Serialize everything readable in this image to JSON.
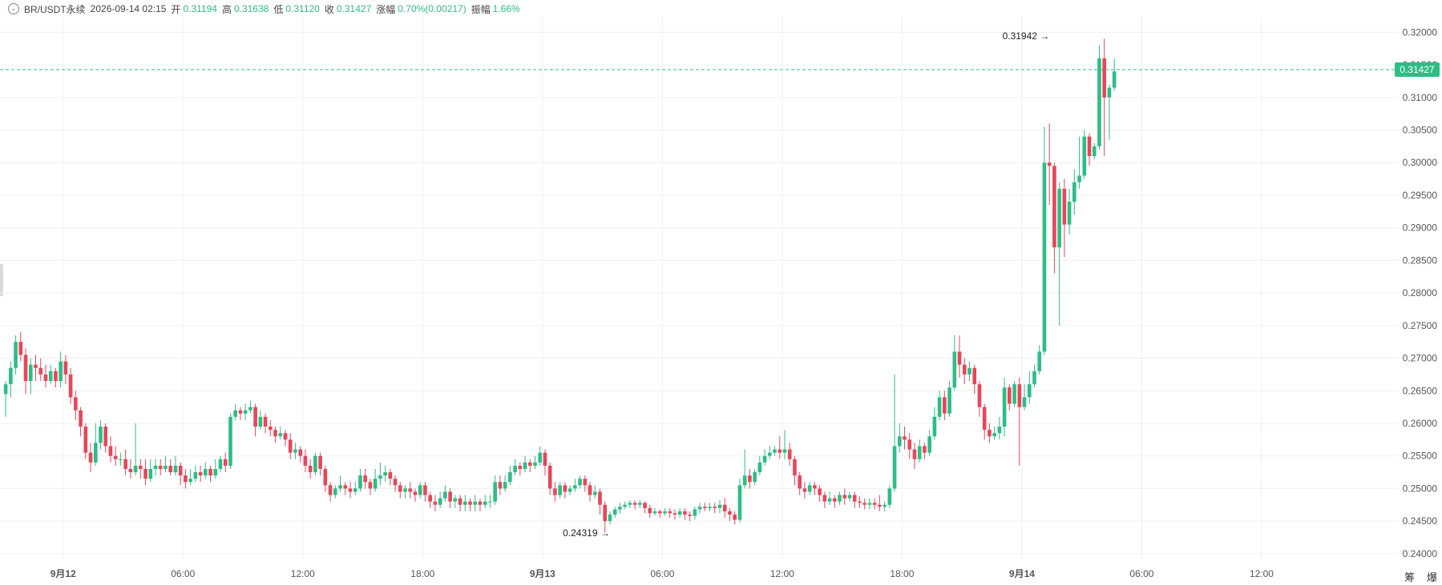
{
  "header": {
    "symbol": "BR/USDT永续",
    "time": "2026-09-14 02:15",
    "open_label": "开",
    "open": "0.31194",
    "high_label": "高",
    "high": "0.31638",
    "low_label": "低",
    "low": "0.31120",
    "close_label": "收",
    "close": "0.31427",
    "change_label": "涨幅",
    "change": "0.70%(0.00217)",
    "amplitude_label": "振幅",
    "amplitude": "1.66%"
  },
  "icons": {
    "collapse": "chevron-down-icon"
  },
  "colors": {
    "up": "#2ebd85",
    "down": "#e5475b",
    "grid": "#f0f0f0",
    "axis_text": "#555555"
  },
  "bottom_right": {
    "item1": "筹",
    "item2": "爆"
  },
  "chart_data": {
    "type": "candlestick",
    "ylim": [
      0.239,
      0.3225
    ],
    "y_ticks": [
      "0.32000",
      "0.31500",
      "0.31000",
      "0.30500",
      "0.30000",
      "0.29500",
      "0.29000",
      "0.28500",
      "0.28000",
      "0.27500",
      "0.27000",
      "0.26500",
      "0.26000",
      "0.25500",
      "0.25000",
      "0.24500",
      "0.24000"
    ],
    "x_ticks": [
      {
        "label": "9月12",
        "bar": 12,
        "bold": true
      },
      {
        "label": "06:00",
        "bar": 36
      },
      {
        "label": "12:00",
        "bar": 60
      },
      {
        "label": "18:00",
        "bar": 84
      },
      {
        "label": "9月13",
        "bar": 108,
        "bold": true
      },
      {
        "label": "06:00",
        "bar": 132
      },
      {
        "label": "12:00",
        "bar": 156
      },
      {
        "label": "18:00",
        "bar": 180
      },
      {
        "label": "9月14",
        "bar": 204,
        "bold": true
      },
      {
        "label": "06:00",
        "bar": 228
      },
      {
        "label": "12:00",
        "bar": 252
      }
    ],
    "last_price": 0.31427,
    "last_price_label": "0.31427",
    "max_marker": {
      "label": "0.31942",
      "bar": 210,
      "value": 0.31942
    },
    "min_marker": {
      "label": "0.24319",
      "bar": 121,
      "value": 0.24319
    },
    "candles": [
      [
        0.2645,
        0.266,
        0.261,
        0.2665
      ],
      [
        0.266,
        0.2685,
        0.264,
        0.2695
      ],
      [
        0.2685,
        0.2725,
        0.2675,
        0.2735
      ],
      [
        0.2725,
        0.2705,
        0.2695,
        0.274
      ],
      [
        0.2705,
        0.2665,
        0.2645,
        0.2715
      ],
      [
        0.2665,
        0.269,
        0.2645,
        0.27
      ],
      [
        0.269,
        0.2685,
        0.2665,
        0.2705
      ],
      [
        0.2685,
        0.2675,
        0.2665,
        0.27
      ],
      [
        0.2675,
        0.2665,
        0.2655,
        0.269
      ],
      [
        0.2665,
        0.268,
        0.266,
        0.269
      ],
      [
        0.268,
        0.2665,
        0.2655,
        0.2685
      ],
      [
        0.2665,
        0.2695,
        0.2655,
        0.271
      ],
      [
        0.2695,
        0.2675,
        0.266,
        0.2705
      ],
      [
        0.2675,
        0.264,
        0.263,
        0.2685
      ],
      [
        0.264,
        0.262,
        0.2605,
        0.265
      ],
      [
        0.262,
        0.2595,
        0.258,
        0.2625
      ],
      [
        0.2595,
        0.2555,
        0.2545,
        0.26
      ],
      [
        0.2555,
        0.254,
        0.2525,
        0.257
      ],
      [
        0.254,
        0.257,
        0.2535,
        0.26
      ],
      [
        0.257,
        0.2595,
        0.256,
        0.2605
      ],
      [
        0.2595,
        0.2565,
        0.2555,
        0.26
      ],
      [
        0.2565,
        0.255,
        0.254,
        0.258
      ],
      [
        0.255,
        0.2545,
        0.2535,
        0.2565
      ],
      [
        0.2545,
        0.2545,
        0.2535,
        0.2555
      ],
      [
        0.2545,
        0.253,
        0.252,
        0.256
      ],
      [
        0.253,
        0.2525,
        0.2515,
        0.2545
      ],
      [
        0.2525,
        0.2535,
        0.252,
        0.26
      ],
      [
        0.2535,
        0.253,
        0.2515,
        0.2545
      ],
      [
        0.253,
        0.2515,
        0.2505,
        0.2545
      ],
      [
        0.2515,
        0.253,
        0.251,
        0.2545
      ],
      [
        0.253,
        0.2535,
        0.252,
        0.2545
      ],
      [
        0.2535,
        0.253,
        0.252,
        0.2545
      ],
      [
        0.253,
        0.2535,
        0.2525,
        0.255
      ],
      [
        0.2535,
        0.2525,
        0.252,
        0.2545
      ],
      [
        0.2525,
        0.2535,
        0.252,
        0.255
      ],
      [
        0.2535,
        0.252,
        0.2505,
        0.254
      ],
      [
        0.252,
        0.251,
        0.25,
        0.253
      ],
      [
        0.251,
        0.2515,
        0.2505,
        0.253
      ],
      [
        0.2515,
        0.2525,
        0.251,
        0.2535
      ],
      [
        0.2525,
        0.252,
        0.251,
        0.2535
      ],
      [
        0.252,
        0.253,
        0.2515,
        0.254
      ],
      [
        0.253,
        0.252,
        0.251,
        0.2535
      ],
      [
        0.252,
        0.253,
        0.2515,
        0.2545
      ],
      [
        0.253,
        0.2545,
        0.2525,
        0.255
      ],
      [
        0.2545,
        0.2535,
        0.2525,
        0.2555
      ],
      [
        0.2535,
        0.261,
        0.253,
        0.2615
      ],
      [
        0.261,
        0.262,
        0.2605,
        0.263
      ],
      [
        0.262,
        0.2615,
        0.2605,
        0.2625
      ],
      [
        0.2615,
        0.262,
        0.2605,
        0.263
      ],
      [
        0.262,
        0.2625,
        0.2615,
        0.2635
      ],
      [
        0.2625,
        0.2595,
        0.258,
        0.263
      ],
      [
        0.2595,
        0.261,
        0.259,
        0.262
      ],
      [
        0.261,
        0.2595,
        0.2585,
        0.2615
      ],
      [
        0.2595,
        0.259,
        0.258,
        0.2605
      ],
      [
        0.259,
        0.258,
        0.257,
        0.2595
      ],
      [
        0.258,
        0.2585,
        0.2575,
        0.2595
      ],
      [
        0.2585,
        0.2575,
        0.2565,
        0.259
      ],
      [
        0.2575,
        0.2555,
        0.2545,
        0.2585
      ],
      [
        0.2555,
        0.256,
        0.2545,
        0.257
      ],
      [
        0.256,
        0.255,
        0.254,
        0.2565
      ],
      [
        0.255,
        0.2535,
        0.2525,
        0.256
      ],
      [
        0.2535,
        0.2525,
        0.2515,
        0.2545
      ],
      [
        0.2525,
        0.255,
        0.252,
        0.2555
      ],
      [
        0.255,
        0.253,
        0.252,
        0.2555
      ],
      [
        0.253,
        0.2505,
        0.2495,
        0.2535
      ],
      [
        0.2505,
        0.249,
        0.248,
        0.251
      ],
      [
        0.249,
        0.25,
        0.2485,
        0.2505
      ],
      [
        0.25,
        0.2505,
        0.2495,
        0.252
      ],
      [
        0.2505,
        0.25,
        0.249,
        0.251
      ],
      [
        0.25,
        0.2495,
        0.2485,
        0.251
      ],
      [
        0.2495,
        0.25,
        0.249,
        0.251
      ],
      [
        0.25,
        0.252,
        0.2495,
        0.253
      ],
      [
        0.252,
        0.251,
        0.25,
        0.253
      ],
      [
        0.251,
        0.25,
        0.249,
        0.2515
      ],
      [
        0.25,
        0.2515,
        0.2495,
        0.253
      ],
      [
        0.2515,
        0.252,
        0.2505,
        0.254
      ],
      [
        0.252,
        0.2525,
        0.251,
        0.2535
      ],
      [
        0.2525,
        0.2515,
        0.2505,
        0.253
      ],
      [
        0.2515,
        0.2505,
        0.2495,
        0.252
      ],
      [
        0.2505,
        0.2495,
        0.2485,
        0.251
      ],
      [
        0.2495,
        0.25,
        0.2485,
        0.2505
      ],
      [
        0.25,
        0.2495,
        0.2485,
        0.251
      ],
      [
        0.2495,
        0.249,
        0.248,
        0.25
      ],
      [
        0.249,
        0.2505,
        0.2485,
        0.251
      ],
      [
        0.2505,
        0.249,
        0.248,
        0.251
      ],
      [
        0.249,
        0.248,
        0.247,
        0.2495
      ],
      [
        0.248,
        0.2475,
        0.2465,
        0.249
      ],
      [
        0.2475,
        0.2485,
        0.247,
        0.2495
      ],
      [
        0.2485,
        0.2495,
        0.248,
        0.2505
      ],
      [
        0.2495,
        0.248,
        0.247,
        0.25
      ],
      [
        0.248,
        0.2485,
        0.247,
        0.249
      ],
      [
        0.2485,
        0.2475,
        0.2465,
        0.249
      ],
      [
        0.2475,
        0.248,
        0.2465,
        0.249
      ],
      [
        0.248,
        0.2475,
        0.2465,
        0.2485
      ],
      [
        0.2475,
        0.248,
        0.2465,
        0.249
      ],
      [
        0.248,
        0.2475,
        0.2465,
        0.2485
      ],
      [
        0.2475,
        0.248,
        0.247,
        0.249
      ],
      [
        0.248,
        0.248,
        0.247,
        0.249
      ],
      [
        0.248,
        0.251,
        0.2475,
        0.252
      ],
      [
        0.251,
        0.25,
        0.249,
        0.252
      ],
      [
        0.25,
        0.251,
        0.2495,
        0.252
      ],
      [
        0.251,
        0.2525,
        0.2505,
        0.2535
      ],
      [
        0.2525,
        0.2535,
        0.252,
        0.2545
      ],
      [
        0.2535,
        0.253,
        0.252,
        0.254
      ],
      [
        0.253,
        0.254,
        0.2525,
        0.255
      ],
      [
        0.254,
        0.2535,
        0.2525,
        0.2545
      ],
      [
        0.2535,
        0.254,
        0.253,
        0.255
      ],
      [
        0.254,
        0.2555,
        0.2535,
        0.2565
      ],
      [
        0.2555,
        0.2535,
        0.252,
        0.256
      ],
      [
        0.2535,
        0.25,
        0.249,
        0.254
      ],
      [
        0.25,
        0.249,
        0.248,
        0.251
      ],
      [
        0.249,
        0.2505,
        0.2485,
        0.251
      ],
      [
        0.2505,
        0.2495,
        0.2485,
        0.251
      ],
      [
        0.2495,
        0.25,
        0.249,
        0.2505
      ],
      [
        0.25,
        0.2505,
        0.2495,
        0.2515
      ],
      [
        0.2505,
        0.2515,
        0.25,
        0.252
      ],
      [
        0.2515,
        0.2505,
        0.2495,
        0.252
      ],
      [
        0.2505,
        0.249,
        0.248,
        0.251
      ],
      [
        0.249,
        0.2495,
        0.2485,
        0.2505
      ],
      [
        0.2495,
        0.2475,
        0.246,
        0.25
      ],
      [
        0.2475,
        0.245,
        0.2432,
        0.248
      ],
      [
        0.245,
        0.246,
        0.2445,
        0.2465
      ],
      [
        0.246,
        0.2468,
        0.2455,
        0.2472
      ],
      [
        0.2468,
        0.2472,
        0.2462,
        0.2478
      ],
      [
        0.2472,
        0.2475,
        0.2468,
        0.248
      ],
      [
        0.2475,
        0.2478,
        0.247,
        0.2482
      ],
      [
        0.2478,
        0.2475,
        0.2468,
        0.2482
      ],
      [
        0.2475,
        0.2478,
        0.247,
        0.2482
      ],
      [
        0.2478,
        0.247,
        0.2462,
        0.248
      ],
      [
        0.247,
        0.2462,
        0.2455,
        0.2475
      ],
      [
        0.2462,
        0.2465,
        0.2458,
        0.247
      ],
      [
        0.2465,
        0.2462,
        0.2455,
        0.2468
      ],
      [
        0.2462,
        0.2465,
        0.2458,
        0.247
      ],
      [
        0.2465,
        0.2462,
        0.2455,
        0.247
      ],
      [
        0.2462,
        0.246,
        0.2452,
        0.2468
      ],
      [
        0.246,
        0.2465,
        0.2455,
        0.247
      ],
      [
        0.2465,
        0.246,
        0.2452,
        0.247
      ],
      [
        0.246,
        0.2458,
        0.245,
        0.2465
      ],
      [
        0.2458,
        0.2468,
        0.2452,
        0.2472
      ],
      [
        0.2468,
        0.2472,
        0.2462,
        0.2478
      ],
      [
        0.2472,
        0.247,
        0.2465,
        0.2478
      ],
      [
        0.247,
        0.2472,
        0.2465,
        0.2478
      ],
      [
        0.2472,
        0.247,
        0.2462,
        0.2478
      ],
      [
        0.247,
        0.2475,
        0.2462,
        0.2482
      ],
      [
        0.2475,
        0.2465,
        0.2455,
        0.2485
      ],
      [
        0.2465,
        0.246,
        0.245,
        0.247
      ],
      [
        0.246,
        0.2452,
        0.2445,
        0.2465
      ],
      [
        0.2452,
        0.2505,
        0.2448,
        0.2515
      ],
      [
        0.2505,
        0.252,
        0.25,
        0.256
      ],
      [
        0.252,
        0.251,
        0.25,
        0.253
      ],
      [
        0.251,
        0.2525,
        0.2505,
        0.253
      ],
      [
        0.2525,
        0.254,
        0.252,
        0.255
      ],
      [
        0.254,
        0.255,
        0.2535,
        0.256
      ],
      [
        0.255,
        0.2555,
        0.2545,
        0.2565
      ],
      [
        0.2555,
        0.256,
        0.255,
        0.2565
      ],
      [
        0.256,
        0.2555,
        0.2545,
        0.258
      ],
      [
        0.2555,
        0.256,
        0.2545,
        0.259
      ],
      [
        0.256,
        0.2545,
        0.2535,
        0.257
      ],
      [
        0.2545,
        0.252,
        0.2505,
        0.255
      ],
      [
        0.252,
        0.25,
        0.249,
        0.2525
      ],
      [
        0.25,
        0.2495,
        0.2485,
        0.251
      ],
      [
        0.2495,
        0.2505,
        0.249,
        0.251
      ],
      [
        0.2505,
        0.25,
        0.249,
        0.251
      ],
      [
        0.25,
        0.249,
        0.248,
        0.2505
      ],
      [
        0.249,
        0.248,
        0.247,
        0.2495
      ],
      [
        0.248,
        0.2485,
        0.2475,
        0.2495
      ],
      [
        0.2485,
        0.248,
        0.247,
        0.249
      ],
      [
        0.248,
        0.249,
        0.2475,
        0.2495
      ],
      [
        0.249,
        0.2485,
        0.2475,
        0.25
      ],
      [
        0.2485,
        0.249,
        0.248,
        0.2495
      ],
      [
        0.249,
        0.248,
        0.247,
        0.2495
      ],
      [
        0.248,
        0.2478,
        0.247,
        0.2488
      ],
      [
        0.2478,
        0.2475,
        0.2468,
        0.2485
      ],
      [
        0.2475,
        0.2478,
        0.2468,
        0.2485
      ],
      [
        0.2478,
        0.2475,
        0.2468,
        0.2485
      ],
      [
        0.2475,
        0.2472,
        0.2465,
        0.249
      ],
      [
        0.2472,
        0.2475,
        0.2465,
        0.248
      ],
      [
        0.2475,
        0.25,
        0.247,
        0.2505
      ],
      [
        0.25,
        0.2565,
        0.2495,
        0.2675
      ],
      [
        0.2565,
        0.258,
        0.2555,
        0.26
      ],
      [
        0.258,
        0.2575,
        0.256,
        0.2595
      ],
      [
        0.2575,
        0.256,
        0.2545,
        0.2585
      ],
      [
        0.256,
        0.2545,
        0.253,
        0.257
      ],
      [
        0.2545,
        0.2565,
        0.254,
        0.2575
      ],
      [
        0.2565,
        0.2555,
        0.2545,
        0.257
      ],
      [
        0.2555,
        0.258,
        0.255,
        0.259
      ],
      [
        0.258,
        0.261,
        0.2575,
        0.2625
      ],
      [
        0.261,
        0.264,
        0.2605,
        0.265
      ],
      [
        0.264,
        0.2615,
        0.2605,
        0.265
      ],
      [
        0.2615,
        0.2655,
        0.261,
        0.2665
      ],
      [
        0.2655,
        0.271,
        0.265,
        0.2735
      ],
      [
        0.271,
        0.269,
        0.267,
        0.2735
      ],
      [
        0.269,
        0.2675,
        0.266,
        0.27
      ],
      [
        0.2675,
        0.2685,
        0.2665,
        0.2695
      ],
      [
        0.2685,
        0.266,
        0.2645,
        0.269
      ],
      [
        0.266,
        0.2625,
        0.261,
        0.2665
      ],
      [
        0.2625,
        0.259,
        0.2575,
        0.263
      ],
      [
        0.259,
        0.258,
        0.257,
        0.26
      ],
      [
        0.258,
        0.2585,
        0.2575,
        0.2595
      ],
      [
        0.2585,
        0.2595,
        0.2575,
        0.261
      ],
      [
        0.2595,
        0.2655,
        0.258,
        0.267
      ],
      [
        0.2655,
        0.263,
        0.262,
        0.266
      ],
      [
        0.263,
        0.266,
        0.2625,
        0.2665
      ],
      [
        0.266,
        0.2625,
        0.2535,
        0.267
      ],
      [
        0.2625,
        0.264,
        0.262,
        0.266
      ],
      [
        0.264,
        0.266,
        0.263,
        0.268
      ],
      [
        0.266,
        0.268,
        0.2655,
        0.269
      ],
      [
        0.268,
        0.271,
        0.2675,
        0.272
      ],
      [
        0.271,
        0.3,
        0.2705,
        0.3055
      ],
      [
        0.3,
        0.2995,
        0.2935,
        0.306
      ],
      [
        0.2995,
        0.287,
        0.283,
        0.3
      ],
      [
        0.287,
        0.296,
        0.275,
        0.297
      ],
      [
        0.296,
        0.2905,
        0.2855,
        0.2975
      ],
      [
        0.2905,
        0.294,
        0.289,
        0.296
      ],
      [
        0.294,
        0.297,
        0.292,
        0.299
      ],
      [
        0.297,
        0.298,
        0.296,
        0.304
      ],
      [
        0.298,
        0.304,
        0.2975,
        0.305
      ],
      [
        0.304,
        0.301,
        0.2995,
        0.3045
      ],
      [
        0.301,
        0.3025,
        0.3005,
        0.303
      ],
      [
        0.3025,
        0.316,
        0.302,
        0.318
      ],
      [
        0.316,
        0.31,
        0.301,
        0.319
      ],
      [
        0.31,
        0.3115,
        0.3035,
        0.312
      ],
      [
        0.3115,
        0.314,
        0.311,
        0.316
      ]
    ]
  }
}
